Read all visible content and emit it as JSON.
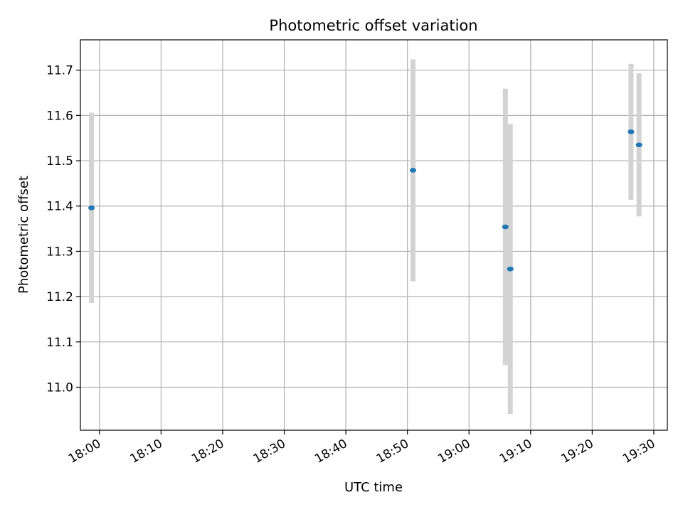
{
  "chart_data": {
    "type": "scatter",
    "title": "Photometric offset variation",
    "xlabel": "UTC time",
    "ylabel": "Photometric offset",
    "grid": true,
    "xlim": [
      "17:56:54",
      "19:32:12"
    ],
    "ylim": [
      10.905,
      11.767
    ],
    "x_ticks": [
      "18:00",
      "18:10",
      "18:20",
      "18:30",
      "18:40",
      "18:50",
      "19:00",
      "19:10",
      "19:20",
      "19:30"
    ],
    "y_ticks": [
      "11.0",
      "11.1",
      "11.2",
      "11.3",
      "11.4",
      "11.5",
      "11.6",
      "11.7"
    ],
    "series": [
      {
        "marker_color": "#1f77b4",
        "errorbar_color": "#d3d3d3",
        "points": [
          {
            "x": "17:58:42",
            "y": 11.396,
            "err": 0.21
          },
          {
            "x": "18:50:54",
            "y": 11.479,
            "err": 0.245
          },
          {
            "x": "19:05:54",
            "y": 11.354,
            "err": 0.305
          },
          {
            "x": "19:06:42",
            "y": 11.261,
            "err": 0.32
          },
          {
            "x": "19:26:18",
            "y": 11.564,
            "err": 0.15
          },
          {
            "x": "19:27:36",
            "y": 11.535,
            "err": 0.158
          }
        ]
      }
    ]
  }
}
